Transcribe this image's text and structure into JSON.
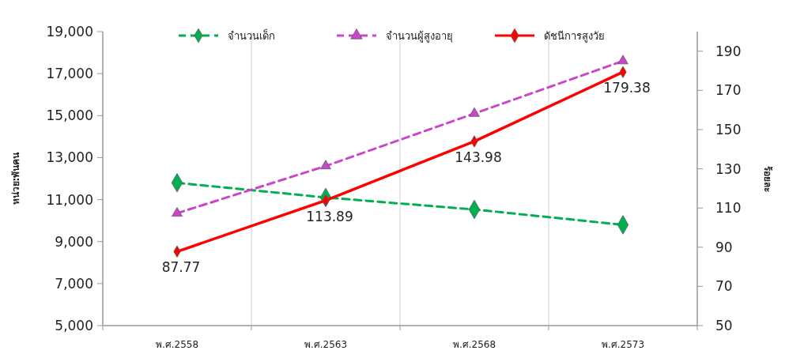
{
  "chart_data": {
    "type": "line",
    "ylabel": "หน่วย:พันคน",
    "y2label": "ร้อยละ",
    "categories": [
      "พ.ศ.2558",
      "พ.ศ.2563",
      "พ.ศ.2568",
      "พ.ศ.2573"
    ],
    "series": [
      {
        "name": "จำนวนเด็ก",
        "color": "#00b050",
        "values": [
          11800,
          11100,
          10530,
          9800
        ],
        "line_style": "dashed",
        "marker": "diamond"
      },
      {
        "name": "จำนวนผู้สูงอายุ",
        "color": "#cc44cc",
        "values": [
          10350,
          12600,
          15100,
          17600
        ],
        "line_style": "dashed",
        "marker": "triangle"
      },
      {
        "name": "ดัชนีการสูงวัย",
        "color": "#ff0000",
        "values": [
          87.77,
          113.89,
          143.98,
          179.38
        ],
        "axis": "y2",
        "line_style": "solid",
        "marker": "diamond",
        "value_labels": [
          "87.77",
          "113.89",
          "143.98",
          "179.38"
        ]
      }
    ],
    "ylim": [
      5000,
      19000
    ],
    "yticks": [
      {
        "value": 5000,
        "label": "5,000"
      },
      {
        "value": 7000,
        "label": "7,000"
      },
      {
        "value": 9000,
        "label": "9,000"
      },
      {
        "value": 11000,
        "label": "11,000"
      },
      {
        "value": 13000,
        "label": "13,000"
      },
      {
        "value": 15000,
        "label": "15,000"
      },
      {
        "value": 17000,
        "label": "17,000"
      },
      {
        "value": 19000,
        "label": "19,000"
      }
    ],
    "y2lim": [
      50,
      200
    ],
    "y2ticks": [
      50,
      70,
      90,
      110,
      130,
      150,
      170,
      190
    ],
    "grid": "x",
    "legend": "top"
  }
}
